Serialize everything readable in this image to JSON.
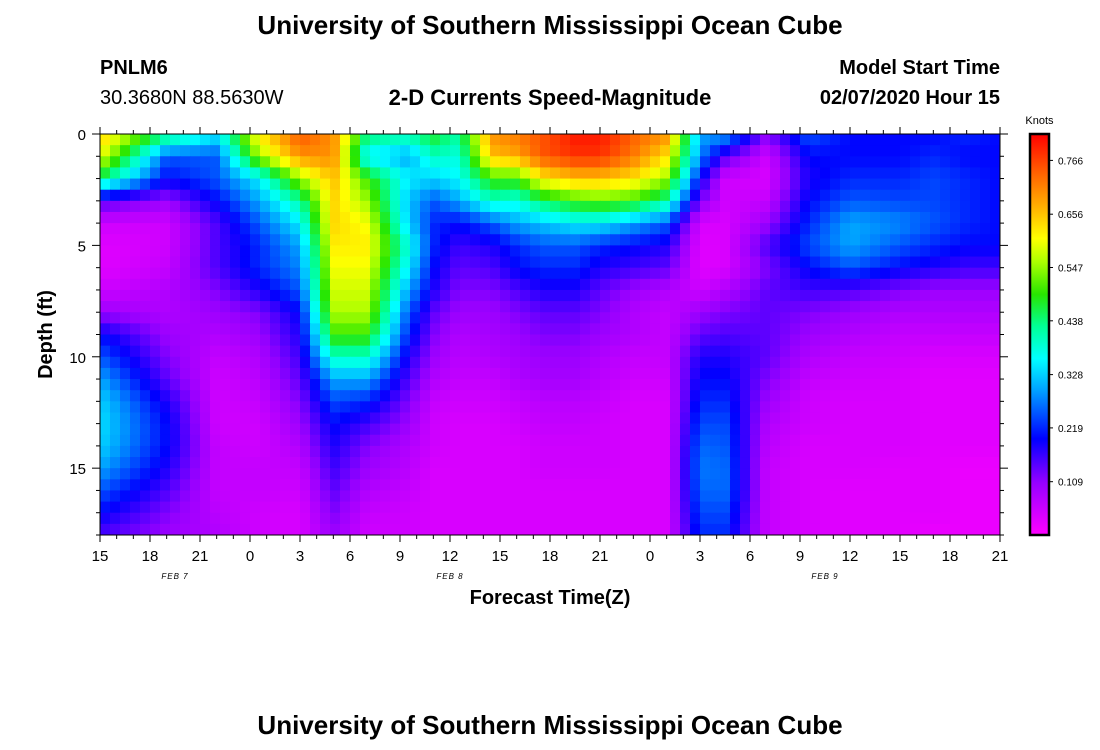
{
  "page": {
    "title_top": "University of Southern Mississippi Ocean Cube",
    "title_bottom": "University of Southern Mississippi Ocean Cube",
    "station": "PNLM6",
    "coords": "30.3680N 88.5630W",
    "plot_title": "2-D Currents Speed-Magnitude",
    "model_start_label": "Model Start Time",
    "model_start_value": "02/07/2020 Hour 15"
  },
  "chart_data": {
    "type": "heatmap",
    "title": "2-D Currents Speed-Magnitude",
    "xlabel": "Forecast Time(Z)",
    "ylabel": "Depth (ft)",
    "x_tick_labels": [
      "15",
      "18",
      "21",
      "0",
      "3",
      "6",
      "9",
      "12",
      "15",
      "18",
      "21",
      "0",
      "3",
      "6",
      "9",
      "12",
      "15",
      "18",
      "21"
    ],
    "x_range_hours": [
      0,
      54
    ],
    "y_ticks": [
      0,
      5,
      10,
      15
    ],
    "y_range": [
      0,
      18
    ],
    "date_labels": [
      {
        "label": "FEB 7",
        "hour": 4.5
      },
      {
        "label": "FEB 8",
        "hour": 21
      },
      {
        "label": "FEB 9",
        "hour": 43.5
      }
    ],
    "colorbar": {
      "unit_label": "Knots",
      "min": 0,
      "max": 0.82,
      "ticks": [
        "0.766",
        "0.656",
        "0.547",
        "0.438",
        "0.328",
        "0.219",
        "0.109"
      ]
    },
    "grid": {
      "times": [
        0,
        4,
        7,
        9.5,
        12,
        14,
        16,
        18.5,
        20,
        21.5,
        23.5,
        25,
        26.5,
        28.5,
        30,
        32,
        34,
        36,
        37.5,
        40,
        42.5,
        45,
        48,
        50,
        52,
        54
      ],
      "depths": [
        0,
        1,
        2,
        3,
        4,
        5,
        6,
        7,
        8,
        9,
        10,
        11,
        12,
        13,
        14,
        15,
        16,
        17,
        18
      ],
      "values": [
        [
          0.65,
          0.45,
          0.35,
          0.62,
          0.75,
          0.7,
          0.45,
          0.42,
          0.48,
          0.42,
          0.7,
          0.72,
          0.75,
          0.8,
          0.8,
          0.74,
          0.7,
          0.3,
          0.3,
          0.12,
          0.25,
          0.2,
          0.2,
          0.2,
          0.22,
          0.2
        ],
        [
          0.6,
          0.25,
          0.25,
          0.55,
          0.7,
          0.7,
          0.35,
          0.3,
          0.4,
          0.38,
          0.66,
          0.68,
          0.75,
          0.78,
          0.78,
          0.72,
          0.63,
          0.28,
          0.15,
          0.05,
          0.2,
          0.2,
          0.2,
          0.22,
          0.2,
          0.2
        ],
        [
          0.45,
          0.2,
          0.25,
          0.35,
          0.55,
          0.66,
          0.5,
          0.35,
          0.33,
          0.36,
          0.5,
          0.5,
          0.62,
          0.66,
          0.66,
          0.63,
          0.55,
          0.2,
          0.05,
          0.04,
          0.18,
          0.22,
          0.22,
          0.24,
          0.22,
          0.2
        ],
        [
          0.15,
          0.1,
          0.2,
          0.3,
          0.42,
          0.64,
          0.55,
          0.32,
          0.25,
          0.3,
          0.4,
          0.38,
          0.45,
          0.5,
          0.52,
          0.5,
          0.42,
          0.12,
          0.05,
          0.06,
          0.2,
          0.25,
          0.24,
          0.24,
          0.22,
          0.2
        ],
        [
          0.05,
          0.05,
          0.15,
          0.25,
          0.35,
          0.64,
          0.6,
          0.33,
          0.22,
          0.2,
          0.25,
          0.3,
          0.32,
          0.35,
          0.35,
          0.3,
          0.25,
          0.04,
          0.04,
          0.1,
          0.22,
          0.3,
          0.28,
          0.25,
          0.22,
          0.2
        ],
        [
          0.03,
          0.05,
          0.15,
          0.22,
          0.3,
          0.62,
          0.62,
          0.38,
          0.22,
          0.16,
          0.18,
          0.22,
          0.25,
          0.25,
          0.22,
          0.2,
          0.18,
          0.03,
          0.04,
          0.15,
          0.24,
          0.3,
          0.25,
          0.22,
          0.2,
          0.2
        ],
        [
          0.03,
          0.06,
          0.15,
          0.22,
          0.28,
          0.6,
          0.6,
          0.35,
          0.2,
          0.14,
          0.15,
          0.2,
          0.22,
          0.22,
          0.18,
          0.16,
          0.14,
          0.03,
          0.04,
          0.12,
          0.2,
          0.25,
          0.2,
          0.18,
          0.16,
          0.16
        ],
        [
          0.05,
          0.08,
          0.12,
          0.18,
          0.25,
          0.58,
          0.58,
          0.3,
          0.18,
          0.12,
          0.12,
          0.15,
          0.18,
          0.18,
          0.14,
          0.1,
          0.08,
          0.05,
          0.08,
          0.14,
          0.16,
          0.15,
          0.12,
          0.1,
          0.1,
          0.1
        ],
        [
          0.1,
          0.08,
          0.1,
          0.12,
          0.2,
          0.56,
          0.56,
          0.25,
          0.14,
          0.1,
          0.1,
          0.12,
          0.14,
          0.14,
          0.12,
          0.08,
          0.06,
          0.1,
          0.12,
          0.14,
          0.12,
          0.1,
          0.08,
          0.08,
          0.08,
          0.08
        ],
        [
          0.2,
          0.1,
          0.08,
          0.1,
          0.18,
          0.5,
          0.5,
          0.22,
          0.12,
          0.08,
          0.09,
          0.1,
          0.12,
          0.12,
          0.1,
          0.08,
          0.06,
          0.14,
          0.15,
          0.14,
          0.1,
          0.08,
          0.06,
          0.06,
          0.06,
          0.06
        ],
        [
          0.25,
          0.12,
          0.06,
          0.08,
          0.16,
          0.4,
          0.4,
          0.18,
          0.1,
          0.07,
          0.08,
          0.09,
          0.1,
          0.1,
          0.08,
          0.06,
          0.06,
          0.18,
          0.18,
          0.14,
          0.08,
          0.06,
          0.05,
          0.04,
          0.04,
          0.04
        ],
        [
          0.3,
          0.14,
          0.05,
          0.07,
          0.14,
          0.3,
          0.3,
          0.15,
          0.08,
          0.06,
          0.06,
          0.08,
          0.09,
          0.09,
          0.07,
          0.05,
          0.05,
          0.2,
          0.2,
          0.12,
          0.06,
          0.05,
          0.04,
          0.03,
          0.03,
          0.03
        ],
        [
          0.33,
          0.18,
          0.05,
          0.06,
          0.12,
          0.24,
          0.22,
          0.12,
          0.06,
          0.05,
          0.05,
          0.06,
          0.07,
          0.07,
          0.06,
          0.04,
          0.04,
          0.22,
          0.22,
          0.1,
          0.05,
          0.04,
          0.04,
          0.03,
          0.03,
          0.03
        ],
        [
          0.34,
          0.2,
          0.05,
          0.05,
          0.1,
          0.2,
          0.16,
          0.1,
          0.05,
          0.04,
          0.04,
          0.05,
          0.06,
          0.06,
          0.05,
          0.04,
          0.04,
          0.24,
          0.24,
          0.08,
          0.05,
          0.04,
          0.04,
          0.03,
          0.03,
          0.03
        ],
        [
          0.33,
          0.2,
          0.06,
          0.05,
          0.08,
          0.18,
          0.12,
          0.08,
          0.05,
          0.04,
          0.04,
          0.04,
          0.05,
          0.05,
          0.05,
          0.04,
          0.04,
          0.26,
          0.25,
          0.07,
          0.04,
          0.04,
          0.04,
          0.03,
          0.03,
          0.03
        ],
        [
          0.3,
          0.18,
          0.06,
          0.06,
          0.06,
          0.16,
          0.1,
          0.07,
          0.04,
          0.04,
          0.04,
          0.04,
          0.05,
          0.05,
          0.05,
          0.04,
          0.04,
          0.27,
          0.26,
          0.06,
          0.04,
          0.04,
          0.03,
          0.03,
          0.02,
          0.02
        ],
        [
          0.25,
          0.15,
          0.06,
          0.06,
          0.05,
          0.14,
          0.08,
          0.06,
          0.04,
          0.04,
          0.04,
          0.04,
          0.04,
          0.04,
          0.04,
          0.04,
          0.04,
          0.26,
          0.26,
          0.06,
          0.04,
          0.03,
          0.03,
          0.03,
          0.02,
          0.02
        ],
        [
          0.2,
          0.12,
          0.07,
          0.05,
          0.04,
          0.12,
          0.06,
          0.05,
          0.04,
          0.04,
          0.04,
          0.04,
          0.04,
          0.04,
          0.04,
          0.04,
          0.04,
          0.24,
          0.24,
          0.06,
          0.04,
          0.03,
          0.03,
          0.03,
          0.02,
          0.02
        ],
        [
          0.15,
          0.1,
          0.08,
          0.05,
          0.04,
          0.1,
          0.05,
          0.05,
          0.04,
          0.04,
          0.04,
          0.04,
          0.04,
          0.04,
          0.04,
          0.04,
          0.04,
          0.22,
          0.22,
          0.06,
          0.04,
          0.03,
          0.03,
          0.02,
          0.02,
          0.02
        ]
      ]
    }
  }
}
